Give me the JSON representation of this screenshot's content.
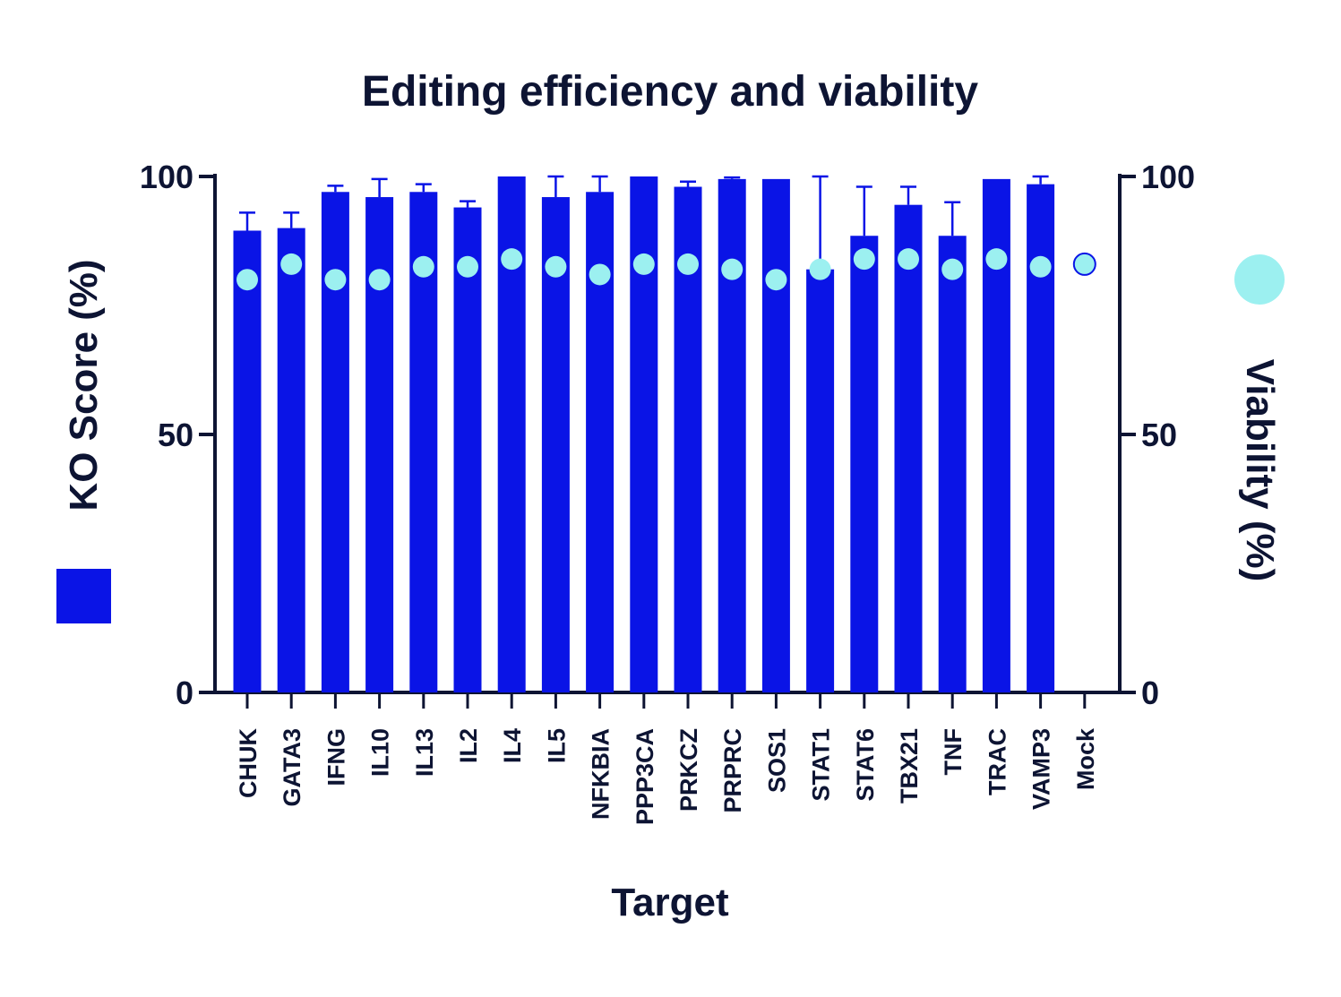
{
  "chart_data": {
    "type": "bar",
    "title": "Editing efficiency and viability",
    "xlabel": "Target",
    "ylabel": "KO Score (%)",
    "y2label": "Viability (%)",
    "ylim": [
      0,
      100
    ],
    "y2lim": [
      0,
      100
    ],
    "yticks": [
      "0",
      "50",
      "100"
    ],
    "y2ticks": [
      "0",
      "50",
      "100"
    ],
    "categories": [
      "CHUK",
      "GATA3",
      "IFNG",
      "IL10",
      "IL13",
      "IL2",
      "IL4",
      "IL5",
      "NFKBIA",
      "PPP3CA",
      "PRKCZ",
      "PRPRC",
      "SOS1",
      "STAT1",
      "STAT6",
      "TBX21",
      "TNF",
      "TRAC",
      "VAMP3",
      "Mock"
    ],
    "series": [
      {
        "type": "bar",
        "axis": "left",
        "color": "#0a14e6",
        "values": [
          89.5,
          90,
          97,
          96,
          97,
          94,
          100,
          96,
          97,
          100,
          98,
          99.5,
          99.5,
          82,
          88.5,
          94.5,
          88.5,
          99.5,
          98.5,
          null
        ],
        "error": [
          3.5,
          3,
          1.2,
          3.5,
          1.5,
          1.2,
          0,
          4,
          3,
          0,
          1,
          0.3,
          0,
          18,
          9.5,
          3.5,
          6.5,
          0,
          1.5,
          null
        ]
      },
      {
        "type": "scatter",
        "axis": "right",
        "color": "#9cf0f0",
        "values": [
          80,
          83,
          80,
          80,
          82.5,
          82.5,
          84,
          82.5,
          81,
          83,
          83,
          82,
          80,
          82,
          84,
          84,
          82,
          84,
          82.5,
          83
        ]
      }
    ],
    "legend": [
      {
        "series": 0,
        "placement": "left"
      },
      {
        "series": 1,
        "placement": "right"
      }
    ],
    "grid": false
  }
}
